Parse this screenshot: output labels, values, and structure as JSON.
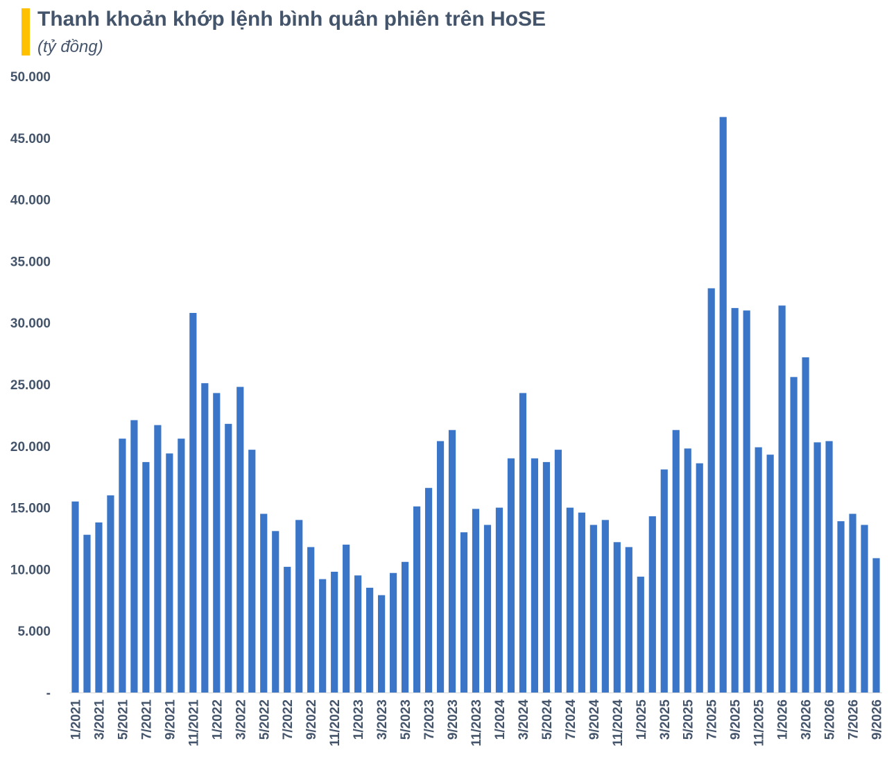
{
  "chart_data": {
    "type": "bar",
    "title": "Thanh khoản khớp lệnh bình quân phiên trên HoSE",
    "subtitle": "(tỷ đồng)",
    "xlabel": "",
    "ylabel": "",
    "ylim": [
      0,
      50000
    ],
    "yticks": [
      0,
      5000,
      10000,
      15000,
      20000,
      25000,
      30000,
      35000,
      40000,
      45000,
      50000
    ],
    "ytick_labels": [
      "-",
      "5.000",
      "10.000",
      "15.000",
      "20.000",
      "25.000",
      "30.000",
      "35.000",
      "40.000",
      "45.000",
      "50.000"
    ],
    "grid": false,
    "legend": "none",
    "bar_color": "#3A75C8",
    "text_color": "#44546A",
    "accent_color": "#FFC000",
    "categories": [
      "1/2021",
      "2/2021",
      "3/2021",
      "4/2021",
      "5/2021",
      "6/2021",
      "7/2021",
      "8/2021",
      "9/2021",
      "10/2021",
      "11/2021",
      "12/2021",
      "1/2022",
      "2/2022",
      "3/2022",
      "4/2022",
      "5/2022",
      "6/2022",
      "7/2022",
      "8/2022",
      "9/2022",
      "10/2022",
      "11/2022",
      "12/2022",
      "1/2023",
      "2/2023",
      "3/2023",
      "4/2023",
      "5/2023",
      "6/2023",
      "7/2023",
      "8/2023",
      "9/2023",
      "10/2023",
      "11/2023",
      "12/2023",
      "1/2024",
      "2/2024",
      "3/2024",
      "4/2024",
      "5/2024",
      "6/2024",
      "7/2024",
      "8/2024",
      "9/2024",
      "10/2024",
      "11/2024",
      "12/2024",
      "1/2025",
      "2/2025",
      "3/2025",
      "4/2025",
      "5/2025",
      "6/2025",
      "7/2025",
      "8/2025",
      "9/2025",
      "10/2025",
      "11/2025",
      "12/2025",
      "1/2026",
      "2/2026",
      "3/2026",
      "4/2026",
      "5/2026",
      "6/2026",
      "7/2026",
      "8/2026",
      "9/2026"
    ],
    "values": [
      15500,
      12800,
      13800,
      16000,
      20600,
      22100,
      18700,
      21700,
      19400,
      20600,
      30800,
      25100,
      24300,
      21800,
      24800,
      19700,
      14500,
      13100,
      10200,
      14000,
      11800,
      9200,
      9800,
      12000,
      9500,
      8500,
      7900,
      9700,
      10600,
      15100,
      16600,
      20400,
      21300,
      13000,
      14900,
      13600,
      15000,
      19000,
      24300,
      19000,
      18700,
      19700,
      15000,
      14600,
      13600,
      14000,
      12200,
      11800,
      9400,
      14300,
      18100,
      21300,
      19800,
      18600,
      32800,
      46700,
      31200,
      31000,
      19900,
      19300,
      31400,
      25600,
      27200,
      20300,
      20400,
      13900,
      14500,
      13600,
      10900
    ],
    "tick_labels": [
      "1/2021",
      "3/2021",
      "5/2021",
      "7/2021",
      "9/2021",
      "11/2021",
      "1/2022",
      "3/2022",
      "5/2022",
      "7/2022",
      "9/2022",
      "11/2022",
      "1/2023",
      "3/2023",
      "5/2023",
      "7/2023",
      "9/2023",
      "11/2023",
      "1/2024",
      "3/2024",
      "5/2024",
      "7/2024",
      "9/2024",
      "11/2024",
      "1/2025",
      "3/2025",
      "5/2025",
      "7/2025",
      "9/2025",
      "11/2025",
      "1/2026",
      "3/2026",
      "5/2026",
      "7/2026",
      "9/2026"
    ]
  }
}
